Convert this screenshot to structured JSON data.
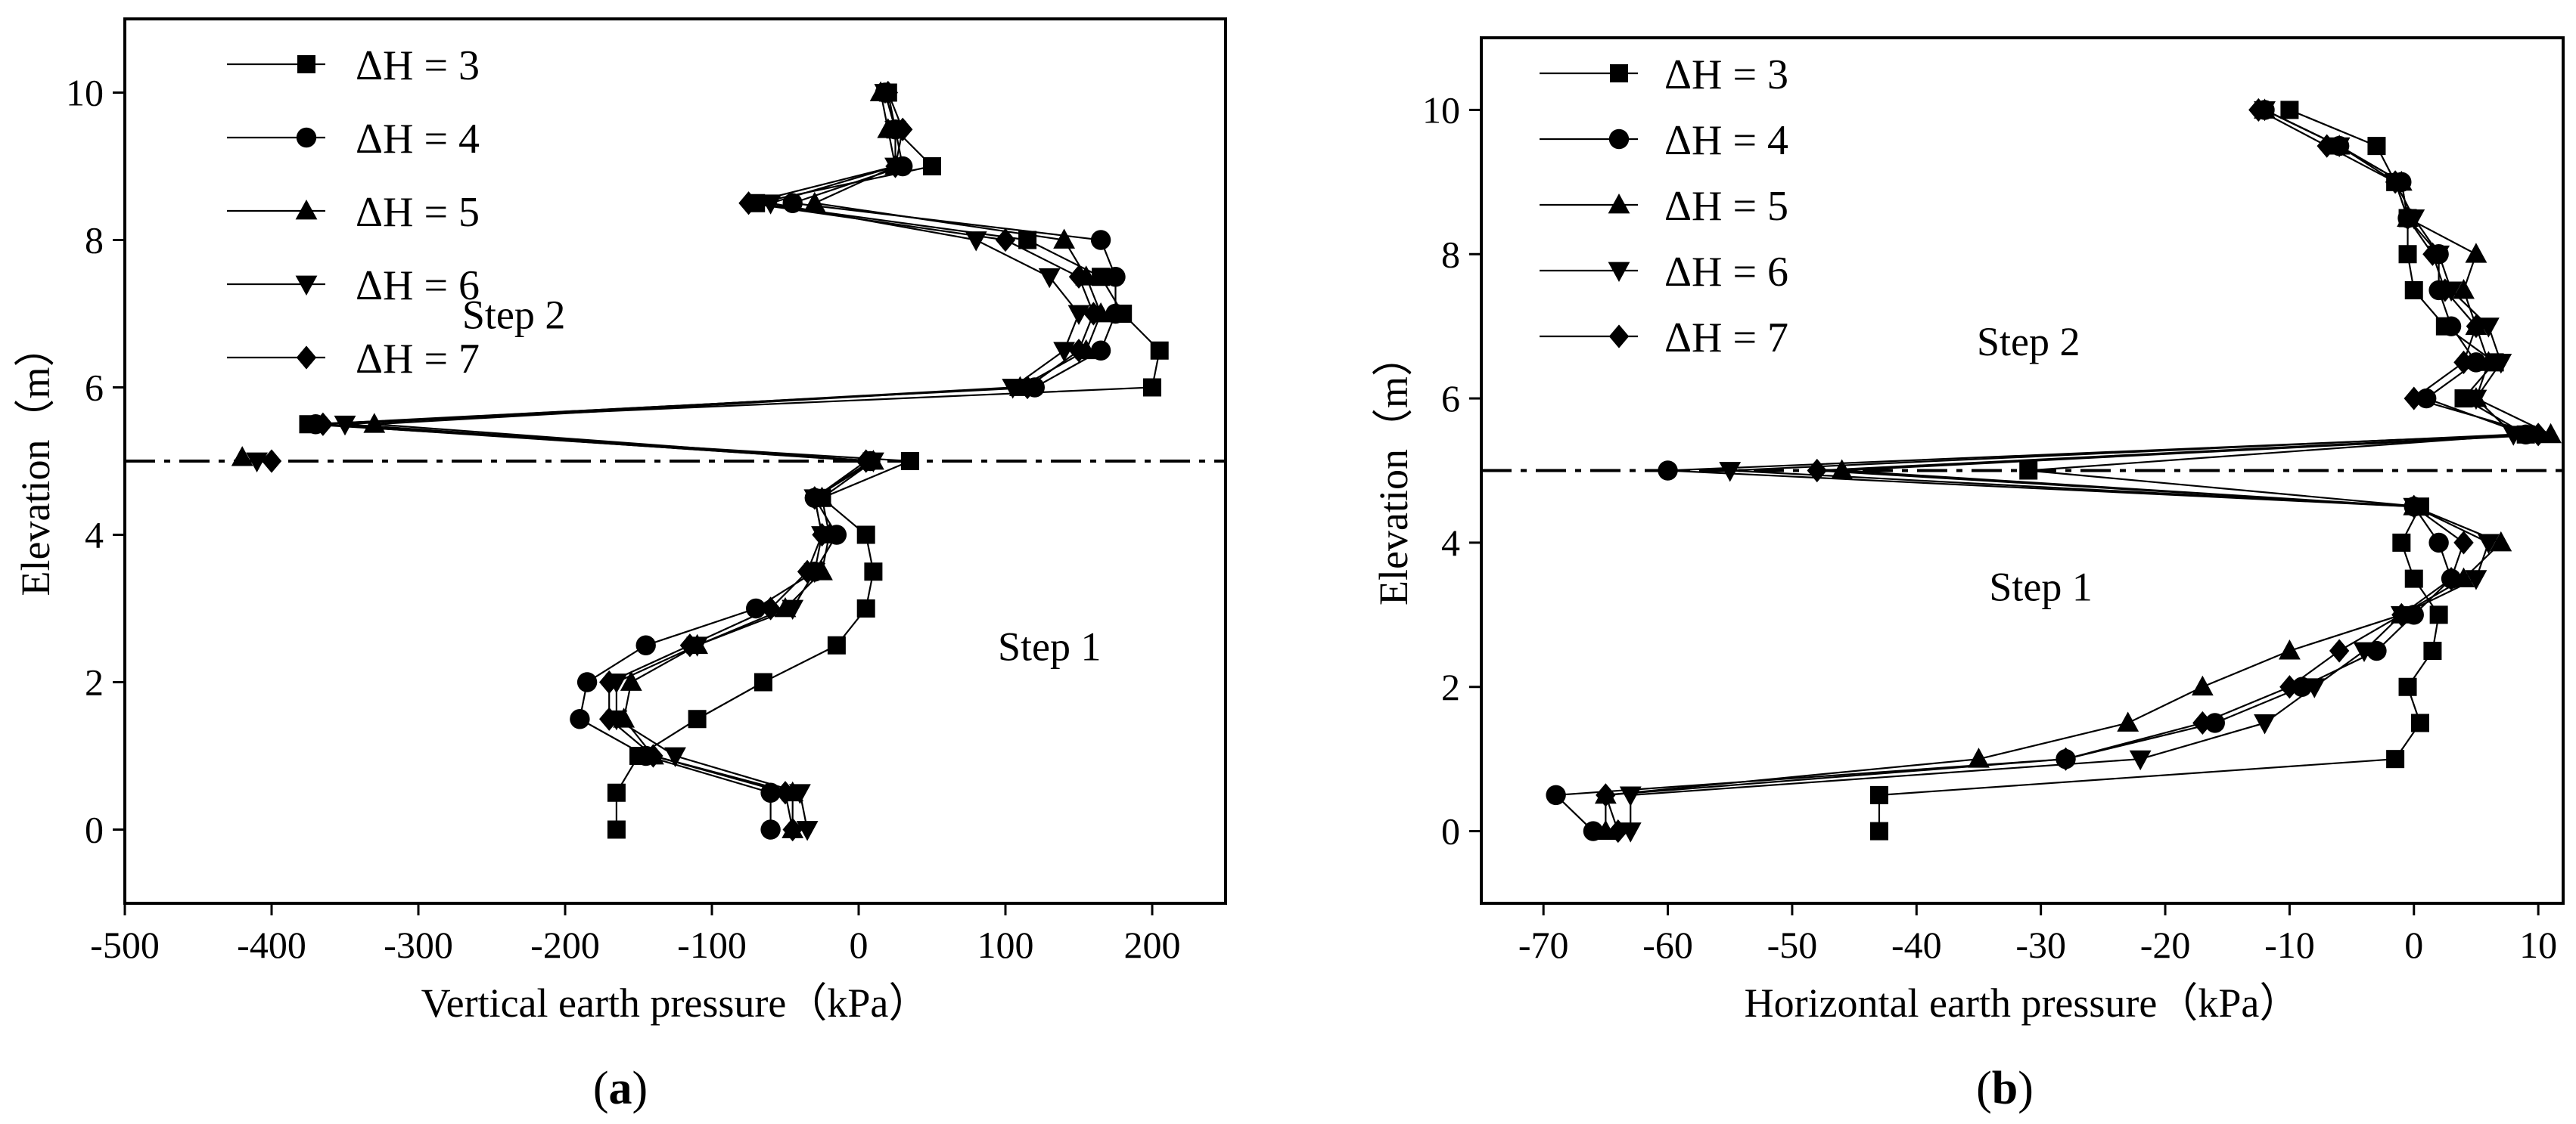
{
  "figure": {
    "legend_titles": [
      "ΔH = 3",
      "ΔH = 4",
      "ΔH = 5",
      "ΔH = 6",
      "ΔH = 7"
    ],
    "marker_shapes": [
      "square",
      "circle",
      "triangle-up",
      "triangle-down",
      "diamond"
    ],
    "line_color": "#000000",
    "background": "#ffffff"
  },
  "chart_data": [
    {
      "type": "line",
      "panel_label": "a",
      "panel_label_text": {
        "open": "(",
        "letter": "a",
        "close": ")"
      },
      "xlabel": "Vertical earth pressure（kPa）",
      "ylabel": "Elevation（m）",
      "xlim": [
        -500,
        250
      ],
      "ylim": [
        -1,
        11
      ],
      "xticks": [
        -500,
        -400,
        -300,
        -200,
        -100,
        0,
        100,
        200
      ],
      "xtick_labels": [
        "-500",
        "-400",
        "-300",
        "-200",
        "-100",
        "0",
        "100",
        "200"
      ],
      "yticks": [
        0,
        2,
        4,
        6,
        8,
        10
      ],
      "ytick_labels": [
        "0",
        "2",
        "4",
        "6",
        "8",
        "10"
      ],
      "reference_line": {
        "y": 5,
        "style": "dash-dot"
      },
      "annotations": [
        {
          "text": "Step 2",
          "x": -235,
          "y": 6.8
        },
        {
          "text": "Step 1",
          "x": 130,
          "y": 2.3
        }
      ],
      "y": [
        0,
        0.5,
        1,
        1.5,
        2,
        2.5,
        3,
        3.5,
        4,
        4.5,
        5,
        5.5,
        6,
        6.5,
        7,
        7.5,
        8,
        8.5,
        9,
        9.5,
        10
      ],
      "series": [
        {
          "name": "ΔH = 3",
          "marker": "square",
          "x": [
            -165,
            -165,
            -150,
            -110,
            -65,
            -15,
            5,
            10,
            5,
            -25,
            35,
            -375,
            200,
            205,
            180,
            165,
            115,
            -70,
            50,
            25,
            20
          ]
        },
        {
          "name": "ΔH = 4",
          "marker": "circle",
          "x": [
            -60,
            -60,
            -145,
            -190,
            -185,
            -145,
            -70,
            -30,
            -15,
            -30,
            8,
            -370,
            120,
            165,
            175,
            175,
            165,
            -45,
            30,
            25,
            18
          ]
        },
        {
          "name": "ΔH = 5",
          "marker": "triangle-up",
          "position": "above-dash",
          "x": [
            -45,
            -45,
            -140,
            -160,
            -155,
            -110,
            -50,
            -25,
            -20,
            -25,
            10,
            -330,
            110,
            155,
            165,
            155,
            140,
            -30,
            25,
            20,
            15
          ]
        },
        {
          "name": "ΔH = 6",
          "marker": "triangle-down",
          "x": [
            -35,
            -40,
            -125,
            -165,
            -165,
            -110,
            -45,
            -30,
            -25,
            -30,
            10,
            -350,
            105,
            140,
            150,
            130,
            80,
            -60,
            25,
            25,
            18
          ]
        },
        {
          "name": "ΔH = 7",
          "marker": "diamond",
          "x": [
            -45,
            -50,
            -140,
            -170,
            -170,
            -115,
            -60,
            -35,
            -25,
            -30,
            5,
            -365,
            115,
            150,
            160,
            150,
            100,
            -75,
            25,
            30,
            20
          ]
        }
      ],
      "extra_points": [
        {
          "series": "ΔH = 5",
          "x": -420,
          "y": 5.05
        },
        {
          "series": "ΔH = 6",
          "x": -410,
          "y": 5.0
        },
        {
          "series": "ΔH = 7",
          "x": -400,
          "y": 5.0
        }
      ]
    },
    {
      "type": "line",
      "panel_label": "b",
      "panel_label_text": {
        "open": "(",
        "letter": "b",
        "close": ")"
      },
      "xlabel": "Horizontal earth pressure（kPa）",
      "ylabel": "Elevation（m）",
      "xlim": [
        -75,
        12
      ],
      "ylim": [
        -1,
        11
      ],
      "xticks": [
        -70,
        -60,
        -50,
        -40,
        -30,
        -20,
        -10,
        0,
        10
      ],
      "xtick_labels": [
        "-70",
        "-60",
        "-50",
        "-40",
        "-30",
        "-20",
        "-10",
        "0",
        "10"
      ],
      "yticks": [
        0,
        2,
        4,
        6,
        8,
        10
      ],
      "ytick_labels": [
        "0",
        "2",
        "4",
        "6",
        "8",
        "10"
      ],
      "reference_line": {
        "y": 5,
        "style": "dash-dot"
      },
      "annotations": [
        {
          "text": "Step 2",
          "x": -31,
          "y": 6.6
        },
        {
          "text": "Step 1",
          "x": -30,
          "y": 3.2
        }
      ],
      "y": [
        0,
        0.5,
        1,
        1.5,
        2,
        2.5,
        3,
        3.5,
        4,
        4.5,
        5,
        5.5,
        6,
        6.5,
        7,
        7.5,
        8,
        8.5,
        9,
        9.5,
        10
      ],
      "series": [
        {
          "name": "ΔH = 3",
          "marker": "square",
          "x": [
            -43,
            -43,
            -1.5,
            0.5,
            -0.5,
            1.5,
            2,
            0,
            -1,
            0.5,
            -31,
            9,
            4,
            6.5,
            2.5,
            0,
            -0.5,
            -0.5,
            -1.5,
            -3,
            -10
          ]
        },
        {
          "name": "ΔH = 4",
          "marker": "circle",
          "x": [
            -66,
            -69,
            -28,
            -16,
            -9,
            -3,
            0,
            3,
            2,
            0,
            -60,
            9,
            1,
            5,
            3,
            2,
            2,
            -0.5,
            -1,
            -6,
            -12
          ]
        },
        {
          "name": "ΔH = 5",
          "marker": "triangle-up",
          "x": [
            -65,
            -65,
            -35,
            -23,
            -17,
            -10,
            -1,
            4,
            7,
            0,
            -46,
            11,
            5,
            6,
            5,
            4,
            5,
            -0.5,
            -1,
            -6,
            -12
          ]
        },
        {
          "name": "ΔH = 6",
          "marker": "triangle-down",
          "x": [
            -63,
            -63,
            -22,
            -12,
            -8,
            -4,
            -1,
            5,
            6,
            0,
            -55,
            8,
            5,
            7,
            6,
            3,
            2,
            0,
            -1.5,
            -6,
            -12
          ]
        },
        {
          "name": "ΔH = 7",
          "marker": "diamond",
          "x": [
            -64,
            -65,
            -28,
            -17,
            -10,
            -6,
            -1,
            3,
            4,
            0,
            -48,
            10,
            0,
            4,
            5,
            2.5,
            1.5,
            -0.5,
            -1.5,
            -7,
            -12.5
          ]
        }
      ],
      "extra_points": []
    }
  ]
}
